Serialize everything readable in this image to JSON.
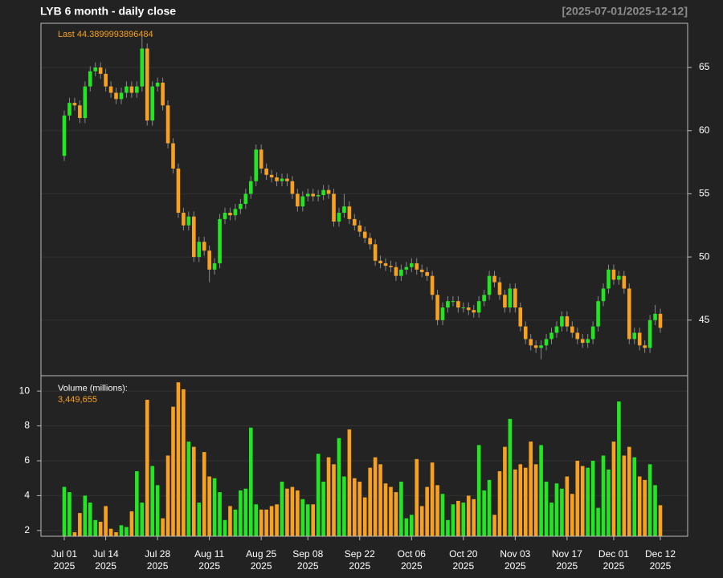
{
  "chart_data": {
    "type": "candlestick",
    "title": "LYB  6 month - daily close",
    "date_range": "[2025-07-01/2025-12-12]",
    "last_label": "Last 44.3899993896484",
    "up_color": "#22e622",
    "down_color": "#f7a11f",
    "x": [
      "2025-07-01",
      "2025-07-02",
      "2025-07-03",
      "2025-07-07",
      "2025-07-08",
      "2025-07-09",
      "2025-07-10",
      "2025-07-11",
      "2025-07-14",
      "2025-07-15",
      "2025-07-16",
      "2025-07-17",
      "2025-07-18",
      "2025-07-21",
      "2025-07-22",
      "2025-07-23",
      "2025-07-24",
      "2025-07-25",
      "2025-07-28",
      "2025-07-29",
      "2025-07-30",
      "2025-07-31",
      "2025-08-01",
      "2025-08-04",
      "2025-08-05",
      "2025-08-06",
      "2025-08-07",
      "2025-08-08",
      "2025-08-11",
      "2025-08-12",
      "2025-08-13",
      "2025-08-14",
      "2025-08-15",
      "2025-08-18",
      "2025-08-19",
      "2025-08-20",
      "2025-08-21",
      "2025-08-22",
      "2025-08-25",
      "2025-08-26",
      "2025-08-27",
      "2025-08-28",
      "2025-08-29",
      "2025-09-02",
      "2025-09-03",
      "2025-09-04",
      "2025-09-05",
      "2025-09-08",
      "2025-09-09",
      "2025-09-10",
      "2025-09-11",
      "2025-09-12",
      "2025-09-15",
      "2025-09-16",
      "2025-09-17",
      "2025-09-18",
      "2025-09-19",
      "2025-09-22",
      "2025-09-23",
      "2025-09-24",
      "2025-09-25",
      "2025-09-26",
      "2025-09-29",
      "2025-09-30",
      "2025-10-01",
      "2025-10-02",
      "2025-10-03",
      "2025-10-06",
      "2025-10-07",
      "2025-10-08",
      "2025-10-09",
      "2025-10-10",
      "2025-10-13",
      "2025-10-14",
      "2025-10-15",
      "2025-10-16",
      "2025-10-17",
      "2025-10-20",
      "2025-10-21",
      "2025-10-22",
      "2025-10-23",
      "2025-10-24",
      "2025-10-27",
      "2025-10-28",
      "2025-10-29",
      "2025-10-30",
      "2025-10-31",
      "2025-11-03",
      "2025-11-04",
      "2025-11-05",
      "2025-11-06",
      "2025-11-07",
      "2025-11-10",
      "2025-11-11",
      "2025-11-12",
      "2025-11-13",
      "2025-11-14",
      "2025-11-17",
      "2025-11-18",
      "2025-11-19",
      "2025-11-20",
      "2025-11-21",
      "2025-11-24",
      "2025-11-25",
      "2025-11-26",
      "2025-11-28",
      "2025-12-01",
      "2025-12-02",
      "2025-12-03",
      "2025-12-04",
      "2025-12-05",
      "2025-12-08",
      "2025-12-09",
      "2025-12-10",
      "2025-12-11",
      "2025-12-12"
    ],
    "open": [
      58.0,
      61.2,
      62.2,
      62.0,
      61.0,
      63.5,
      64.7,
      65.0,
      64.5,
      63.5,
      63.0,
      62.5,
      63.0,
      63.5,
      63.0,
      63.5,
      66.5,
      60.8,
      63.5,
      63.8,
      62.0,
      59.0,
      57.0,
      53.5,
      52.5,
      53.2,
      50.0,
      51.2,
      50.5,
      49.0,
      49.5,
      53.0,
      53.5,
      53.3,
      53.8,
      54.2,
      55.0,
      56.0,
      58.5,
      57.0,
      56.5,
      56.3,
      56.0,
      56.2,
      56.0,
      55.0,
      54.0,
      54.8,
      55.0,
      54.8,
      54.9,
      55.3,
      55.0,
      52.8,
      53.5,
      54.0,
      53.0,
      52.5,
      52.0,
      51.5,
      51.0,
      49.7,
      49.5,
      49.3,
      49.2,
      48.5,
      49.0,
      49.2,
      49.5,
      49.0,
      48.8,
      48.5,
      47.0,
      45.0,
      46.0,
      46.5,
      46.5,
      46.0,
      46.0,
      45.8,
      45.6,
      46.5,
      47.0,
      48.5,
      48.0,
      47.0,
      46.0,
      47.5,
      46.0,
      44.5,
      43.5,
      43.0,
      42.8,
      43.0,
      43.5,
      44.0,
      44.5,
      45.3,
      44.5,
      44.0,
      43.5,
      43.2,
      43.5,
      44.5,
      46.5,
      47.5,
      49.0,
      48.2,
      48.5,
      47.5,
      43.5,
      44.0,
      43.0,
      42.8,
      45.0,
      45.5
    ],
    "high": [
      61.6,
      62.6,
      62.6,
      62.4,
      63.9,
      65.1,
      65.4,
      65.4,
      64.9,
      63.9,
      63.4,
      63.4,
      63.9,
      63.9,
      63.9,
      67.5,
      66.9,
      63.9,
      64.2,
      64.2,
      62.4,
      59.4,
      57.4,
      53.9,
      53.6,
      53.6,
      51.6,
      51.6,
      50.9,
      49.9,
      53.4,
      53.9,
      53.9,
      54.2,
      54.6,
      55.4,
      56.4,
      58.9,
      58.9,
      57.4,
      56.9,
      56.7,
      56.6,
      56.6,
      56.4,
      55.4,
      55.2,
      55.4,
      55.4,
      55.3,
      55.7,
      55.7,
      55.4,
      53.9,
      55.0,
      54.4,
      53.4,
      52.9,
      52.4,
      51.9,
      51.4,
      50.1,
      49.9,
      49.7,
      49.6,
      49.4,
      49.6,
      49.9,
      49.9,
      49.4,
      49.2,
      48.9,
      47.4,
      46.4,
      46.9,
      46.9,
      46.9,
      46.4,
      46.4,
      46.2,
      46.9,
      47.4,
      48.9,
      48.9,
      48.4,
      47.4,
      47.9,
      47.9,
      46.4,
      44.9,
      43.9,
      43.4,
      43.4,
      43.9,
      44.4,
      44.9,
      45.7,
      45.7,
      44.9,
      44.4,
      43.9,
      43.9,
      44.9,
      46.9,
      47.9,
      49.4,
      49.4,
      48.9,
      48.9,
      47.9,
      44.4,
      44.4,
      43.4,
      45.4,
      46.2,
      45.9
    ],
    "low": [
      57.6,
      60.8,
      61.6,
      60.6,
      60.6,
      63.1,
      64.3,
      64.1,
      63.1,
      62.6,
      62.1,
      62.1,
      62.6,
      62.6,
      62.6,
      63.1,
      60.4,
      60.4,
      63.1,
      61.6,
      58.6,
      56.6,
      53.1,
      52.1,
      52.1,
      49.6,
      49.6,
      50.1,
      48.0,
      48.6,
      49.1,
      52.6,
      52.9,
      52.9,
      53.4,
      53.8,
      54.6,
      55.6,
      56.6,
      56.1,
      55.9,
      55.6,
      55.6,
      55.6,
      54.6,
      53.6,
      53.6,
      54.4,
      54.4,
      54.4,
      54.5,
      54.6,
      52.4,
      52.4,
      53.1,
      52.6,
      52.1,
      51.6,
      51.1,
      50.6,
      49.3,
      49.1,
      48.9,
      48.8,
      48.1,
      48.1,
      48.6,
      48.8,
      48.6,
      48.4,
      48.1,
      46.6,
      44.6,
      44.6,
      45.6,
      46.1,
      45.6,
      45.6,
      45.4,
      45.2,
      45.2,
      46.1,
      46.6,
      47.6,
      46.6,
      45.6,
      45.6,
      45.6,
      44.1,
      43.1,
      42.6,
      42.4,
      41.9,
      42.6,
      43.1,
      43.6,
      44.1,
      44.1,
      43.6,
      43.1,
      42.8,
      42.8,
      43.1,
      44.1,
      46.1,
      47.1,
      47.8,
      47.8,
      47.1,
      43.1,
      43.1,
      42.6,
      42.4,
      42.4,
      44.6,
      44.0
    ],
    "close": [
      61.2,
      62.2,
      62.0,
      61.0,
      63.5,
      64.7,
      65.0,
      64.5,
      63.5,
      63.0,
      62.5,
      63.0,
      63.5,
      63.0,
      63.5,
      66.5,
      60.8,
      63.5,
      63.8,
      62.0,
      59.0,
      57.0,
      53.5,
      52.5,
      53.2,
      50.0,
      51.2,
      50.5,
      49.0,
      49.5,
      53.0,
      53.5,
      53.3,
      53.8,
      54.2,
      55.0,
      56.0,
      58.5,
      57.0,
      56.5,
      56.3,
      56.0,
      56.2,
      56.0,
      55.0,
      54.0,
      54.8,
      55.0,
      54.8,
      54.9,
      55.3,
      55.0,
      52.8,
      53.5,
      54.0,
      53.0,
      52.5,
      52.0,
      51.5,
      51.0,
      49.7,
      49.5,
      49.3,
      49.2,
      48.5,
      49.0,
      49.2,
      49.5,
      49.0,
      48.8,
      48.5,
      47.0,
      45.0,
      46.0,
      46.5,
      46.5,
      46.0,
      46.0,
      45.8,
      45.6,
      46.5,
      47.0,
      48.5,
      48.0,
      47.0,
      46.0,
      47.5,
      46.0,
      44.5,
      43.5,
      43.0,
      42.8,
      43.0,
      43.5,
      44.0,
      44.5,
      45.3,
      44.5,
      44.0,
      43.5,
      43.2,
      43.5,
      44.5,
      46.5,
      47.5,
      49.0,
      48.2,
      48.5,
      47.5,
      43.5,
      44.0,
      43.0,
      42.8,
      45.0,
      45.5,
      44.39
    ],
    "ylim": [
      40.6,
      68.5
    ],
    "yticks": [
      45,
      50,
      55,
      60,
      65
    ],
    "volume": {
      "label": "Volume (millions):",
      "last_label": "3,449,655",
      "values": [
        4.5,
        4.2,
        1.9,
        3.0,
        4.0,
        3.6,
        2.6,
        2.5,
        3.4,
        2.1,
        1.9,
        2.3,
        2.2,
        3.1,
        5.4,
        3.6,
        9.5,
        5.7,
        4.6,
        2.7,
        6.3,
        9.1,
        10.5,
        10.1,
        7.1,
        6.8,
        3.6,
        6.5,
        5.1,
        5.0,
        4.2,
        2.6,
        3.4,
        3.2,
        4.3,
        4.4,
        7.9,
        3.5,
        3.2,
        3.2,
        3.4,
        3.5,
        4.8,
        4.4,
        4.5,
        4.3,
        3.8,
        3.5,
        3.5,
        6.4,
        4.8,
        6.2,
        5.8,
        7.3,
        5.1,
        7.8,
        5.0,
        4.8,
        3.9,
        5.6,
        6.2,
        5.8,
        4.7,
        4.5,
        4.2,
        4.8,
        2.7,
        2.9,
        6.1,
        3.4,
        4.5,
        5.9,
        4.6,
        4.1,
        2.6,
        3.5,
        3.7,
        3.6,
        4.0,
        3.8,
        6.9,
        4.3,
        4.9,
        2.9,
        5.4,
        6.8,
        8.4,
        5.5,
        5.8,
        5.6,
        7.1,
        5.8,
        6.9,
        4.8,
        3.6,
        4.7,
        4.4,
        5.1,
        4.1,
        6.0,
        5.7,
        5.6,
        6.0,
        3.3,
        6.3,
        5.5,
        7.1,
        9.4,
        6.3,
        6.8,
        6.2,
        5.1,
        4.9,
        5.8,
        4.6,
        3.449655
      ],
      "ylim": [
        1.67,
        10.88
      ],
      "yticks": [
        2,
        4,
        6,
        8,
        10
      ]
    },
    "xticks": [
      {
        "value": "2025-07-01",
        "label": "Jul 01",
        "sublabel": "2025"
      },
      {
        "value": "2025-07-14",
        "label": "Jul 14",
        "sublabel": "2025"
      },
      {
        "value": "2025-07-28",
        "label": "Jul 28",
        "sublabel": "2025"
      },
      {
        "value": "2025-08-11",
        "label": "Aug 11",
        "sublabel": "2025"
      },
      {
        "value": "2025-08-25",
        "label": "Aug 25",
        "sublabel": "2025"
      },
      {
        "value": "2025-09-08",
        "label": "Sep 08",
        "sublabel": "2025"
      },
      {
        "value": "2025-09-22",
        "label": "Sep 22",
        "sublabel": "2025"
      },
      {
        "value": "2025-10-06",
        "label": "Oct 06",
        "sublabel": "2025"
      },
      {
        "value": "2025-10-20",
        "label": "Oct 20",
        "sublabel": "2025"
      },
      {
        "value": "2025-11-03",
        "label": "Nov 03",
        "sublabel": "2025"
      },
      {
        "value": "2025-11-17",
        "label": "Nov 17",
        "sublabel": "2025"
      },
      {
        "value": "2025-12-01",
        "label": "Dec 01",
        "sublabel": "2025"
      },
      {
        "value": "2025-12-12",
        "label": "Dec 12",
        "sublabel": "2025"
      }
    ]
  }
}
